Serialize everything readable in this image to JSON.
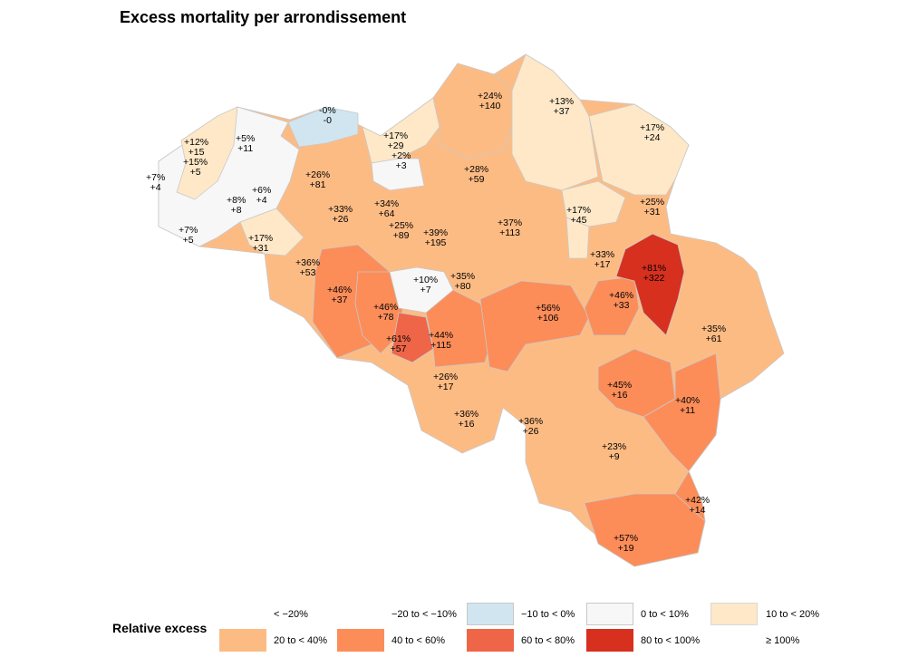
{
  "title": "Excess mortality per arrondissement",
  "legend": {
    "title": "Relative excess",
    "classes": [
      {
        "label": "< −20%",
        "color": "#2166ac"
      },
      {
        "label": "−20 to < −10%",
        "color": "#92c5de"
      },
      {
        "label": "−10 to < 0%",
        "color": "#d1e5f0"
      },
      {
        "label": "0 to < 10%",
        "color": "#f7f7f7"
      },
      {
        "label": "10 to < 20%",
        "color": "#fee8c8"
      },
      {
        "label": "20 to < 40%",
        "color": "#fdbb84"
      },
      {
        "label": "40 to < 60%",
        "color": "#fc8d59"
      },
      {
        "label": "60 to < 80%",
        "color": "#ef6548"
      },
      {
        "label": "80 to < 100%",
        "color": "#d7301f"
      },
      {
        "label": "≥ 100%",
        "color": "#990000"
      }
    ]
  },
  "labels": [
    {
      "pct": "-0%",
      "count": "-0"
    },
    {
      "pct": "+5%",
      "count": "+11"
    },
    {
      "pct": "+12%",
      "count": "+15"
    },
    {
      "pct": "+15%",
      "count": "+5"
    },
    {
      "pct": "+7%",
      "count": "+4"
    },
    {
      "pct": "+8%",
      "count": "+8"
    },
    {
      "pct": "+6%",
      "count": "+4"
    },
    {
      "pct": "+7%",
      "count": "+5"
    },
    {
      "pct": "+17%",
      "count": "+31"
    },
    {
      "pct": "+17%",
      "count": "+29"
    },
    {
      "pct": "+2%",
      "count": "+3"
    },
    {
      "pct": "+24%",
      "count": "+140"
    },
    {
      "pct": "+13%",
      "count": "+37"
    },
    {
      "pct": "+17%",
      "count": "+24"
    },
    {
      "pct": "+26%",
      "count": "+81"
    },
    {
      "pct": "+28%",
      "count": "+59"
    },
    {
      "pct": "+33%",
      "count": "+26"
    },
    {
      "pct": "+34%",
      "count": "+64"
    },
    {
      "pct": "+25%",
      "count": "+89"
    },
    {
      "pct": "+39%",
      "count": "+195"
    },
    {
      "pct": "+37%",
      "count": "+113"
    },
    {
      "pct": "+17%",
      "count": "+45"
    },
    {
      "pct": "+25%",
      "count": "+31"
    },
    {
      "pct": "+36%",
      "count": "+53"
    },
    {
      "pct": "+10%",
      "count": "+7"
    },
    {
      "pct": "+35%",
      "count": "+80"
    },
    {
      "pct": "+33%",
      "count": "+17"
    },
    {
      "pct": "+81%",
      "count": "+322"
    },
    {
      "pct": "+46%",
      "count": "+37"
    },
    {
      "pct": "+46%",
      "count": "+78"
    },
    {
      "pct": "+61%",
      "count": "+57"
    },
    {
      "pct": "+44%",
      "count": "+115"
    },
    {
      "pct": "+56%",
      "count": "+106"
    },
    {
      "pct": "+46%",
      "count": "+33"
    },
    {
      "pct": "+35%",
      "count": "+61"
    },
    {
      "pct": "+26%",
      "count": "+17"
    },
    {
      "pct": "+36%",
      "count": "+16"
    },
    {
      "pct": "+36%",
      "count": "+26"
    },
    {
      "pct": "+45%",
      "count": "+16"
    },
    {
      "pct": "+40%",
      "count": "+11"
    },
    {
      "pct": "+23%",
      "count": "+9"
    },
    {
      "pct": "+42%",
      "count": "+14"
    },
    {
      "pct": "+57%",
      "count": "+19"
    }
  ]
}
